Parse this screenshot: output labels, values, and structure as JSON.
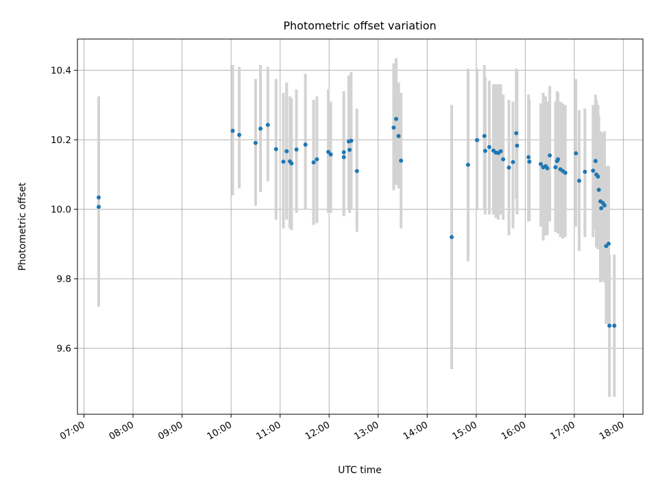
{
  "chart_data": {
    "type": "scatter",
    "title": "Photometric offset variation",
    "xlabel": "UTC time",
    "ylabel": "Photometric offset",
    "x_unit": "UTC hour",
    "xlim": [
      "06:52",
      "18:24"
    ],
    "ylim": [
      9.41,
      10.49
    ],
    "xticks": [
      "07:00",
      "08:00",
      "09:00",
      "10:00",
      "11:00",
      "12:00",
      "13:00",
      "14:00",
      "15:00",
      "16:00",
      "17:00",
      "18:00"
    ],
    "yticks": [
      9.6,
      9.8,
      10.0,
      10.2,
      10.4
    ],
    "grid": true,
    "colors": {
      "marker": "#1f77b4",
      "errorbar": "#d3d3d3",
      "grid": "#b0b0b0"
    },
    "series": [
      {
        "x": [
          "07:18",
          "07:18",
          "10:02",
          "10:10",
          "10:30",
          "10:36",
          "10:45",
          "10:55",
          "11:04",
          "11:08",
          "11:12",
          "11:14",
          "11:20",
          "11:31",
          "11:41",
          "11:45",
          "11:59",
          "12:02",
          "12:18",
          "12:18",
          "12:24",
          "12:25",
          "12:27",
          "12:34",
          "13:19",
          "13:22",
          "13:25",
          "13:28",
          "14:30",
          "14:50",
          "15:01",
          "15:10",
          "15:11",
          "15:16",
          "15:21",
          "15:24",
          "15:27",
          "15:30",
          "15:33",
          "15:40",
          "15:45",
          "15:49",
          "15:50",
          "16:04",
          "16:05",
          "16:19",
          "16:22",
          "16:25",
          "16:27",
          "16:30",
          "16:37",
          "16:39",
          "16:40",
          "16:43",
          "16:46",
          "16:49",
          "17:02",
          "17:06",
          "17:13",
          "17:23",
          "17:26",
          "17:27",
          "17:29",
          "17:30",
          "17:32",
          "17:33",
          "17:35",
          "17:37",
          "17:39",
          "17:42",
          "17:43",
          "17:49"
        ],
        "y": [
          10.034,
          10.007,
          10.226,
          10.214,
          10.191,
          10.232,
          10.243,
          10.173,
          10.137,
          10.167,
          10.138,
          10.132,
          10.172,
          10.186,
          10.135,
          10.144,
          10.165,
          10.158,
          10.15,
          10.164,
          10.195,
          10.171,
          10.197,
          10.11,
          10.235,
          10.26,
          10.211,
          10.14,
          9.92,
          10.128,
          10.199,
          10.211,
          10.168,
          10.179,
          10.169,
          10.163,
          10.162,
          10.167,
          10.144,
          10.12,
          10.136,
          10.219,
          10.183,
          10.15,
          10.137,
          10.13,
          10.121,
          10.124,
          10.118,
          10.155,
          10.121,
          10.139,
          10.144,
          10.115,
          10.11,
          10.105,
          10.161,
          10.082,
          10.108,
          10.111,
          10.139,
          10.1,
          10.094,
          10.056,
          10.023,
          10.003,
          10.018,
          10.011,
          9.894,
          9.901,
          9.665,
          9.665
        ],
        "err_low": [
          9.72,
          9.72,
          10.04,
          10.06,
          10.01,
          10.05,
          10.08,
          9.97,
          9.945,
          9.97,
          9.945,
          9.94,
          9.99,
          10.0,
          9.955,
          9.96,
          9.99,
          9.99,
          9.98,
          9.99,
          10.0,
          9.99,
          10.0,
          9.935,
          10.055,
          10.07,
          10.06,
          9.945,
          9.54,
          9.85,
          10.0,
          10.0,
          9.985,
          9.985,
          9.985,
          9.975,
          9.97,
          9.985,
          9.97,
          9.925,
          9.945,
          10.03,
          9.985,
          9.965,
          9.965,
          9.95,
          9.91,
          9.925,
          9.925,
          9.965,
          9.935,
          9.935,
          9.93,
          9.92,
          9.915,
          9.92,
          9.95,
          9.88,
          9.92,
          9.92,
          9.94,
          9.89,
          9.885,
          9.885,
          9.79,
          9.79,
          9.8,
          9.79,
          9.67,
          9.67,
          9.46,
          9.46
        ],
        "err_high": [
          10.325,
          10.29,
          10.415,
          10.41,
          10.375,
          10.415,
          10.41,
          10.375,
          10.335,
          10.365,
          10.325,
          10.32,
          10.345,
          10.39,
          10.315,
          10.325,
          10.345,
          10.31,
          10.32,
          10.34,
          10.385,
          10.35,
          10.395,
          10.29,
          10.42,
          10.435,
          10.365,
          10.335,
          10.3,
          10.405,
          10.405,
          10.415,
          10.38,
          10.37,
          10.36,
          10.36,
          10.36,
          10.36,
          10.33,
          10.315,
          10.31,
          10.405,
          10.4,
          10.33,
          10.315,
          10.305,
          10.335,
          10.325,
          10.31,
          10.355,
          10.31,
          10.34,
          10.335,
          10.31,
          10.305,
          10.3,
          10.375,
          10.285,
          10.29,
          10.3,
          10.33,
          10.315,
          10.3,
          10.27,
          10.225,
          10.22,
          10.22,
          10.225,
          10.125,
          10.125,
          9.87,
          9.87
        ]
      }
    ]
  }
}
